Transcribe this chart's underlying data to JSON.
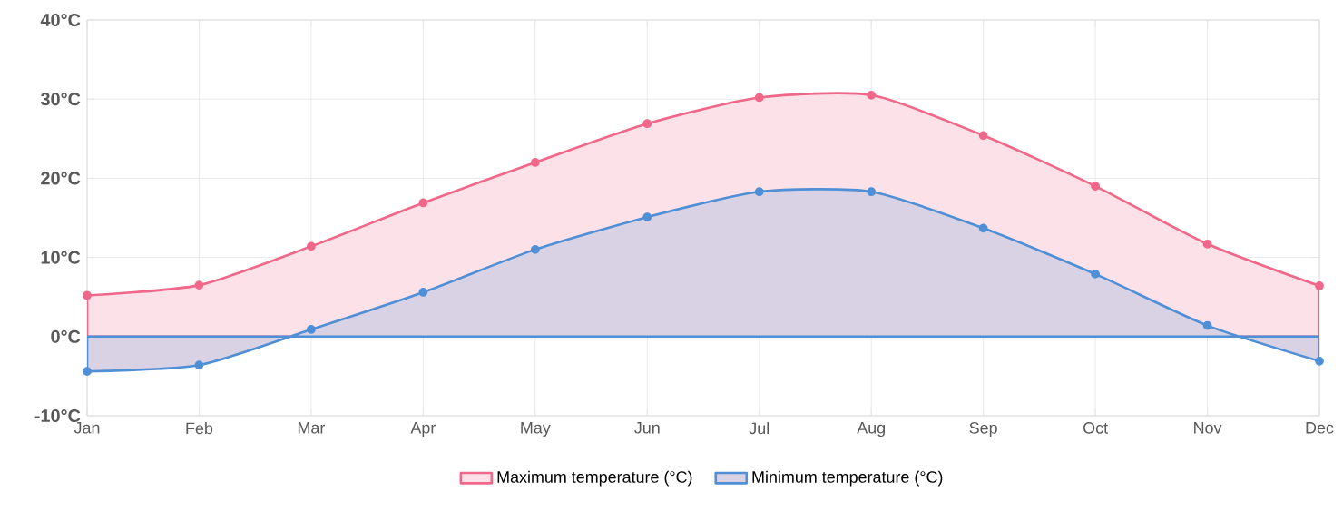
{
  "chart_data": {
    "type": "area",
    "categories": [
      "Jan",
      "Feb",
      "Mar",
      "Apr",
      "May",
      "Jun",
      "Jul",
      "Aug",
      "Sep",
      "Oct",
      "Nov",
      "Dec"
    ],
    "series": [
      {
        "name": "Maximum temperature (°C)",
        "color": "#f0678a",
        "values": [
          5.2,
          6.5,
          11.4,
          16.9,
          22.0,
          26.9,
          30.2,
          30.5,
          25.4,
          19.0,
          11.7,
          6.4
        ]
      },
      {
        "name": "Minimum temperature (°C)",
        "color": "#4f8fd6",
        "values": [
          -4.4,
          -3.6,
          0.9,
          5.6,
          11.0,
          15.1,
          18.3,
          18.3,
          13.7,
          7.9,
          1.4,
          -3.1
        ]
      }
    ],
    "ylim": [
      -10,
      40
    ],
    "yticks": [
      {
        "value": -10,
        "label": "-10°C"
      },
      {
        "value": 0,
        "label": "0°C"
      },
      {
        "value": 10,
        "label": "10°C"
      },
      {
        "value": 20,
        "label": "20°C"
      },
      {
        "value": 30,
        "label": "30°C"
      },
      {
        "value": 40,
        "label": "40°C"
      }
    ],
    "grid": true,
    "legend": "bottom",
    "marker": "circle"
  }
}
